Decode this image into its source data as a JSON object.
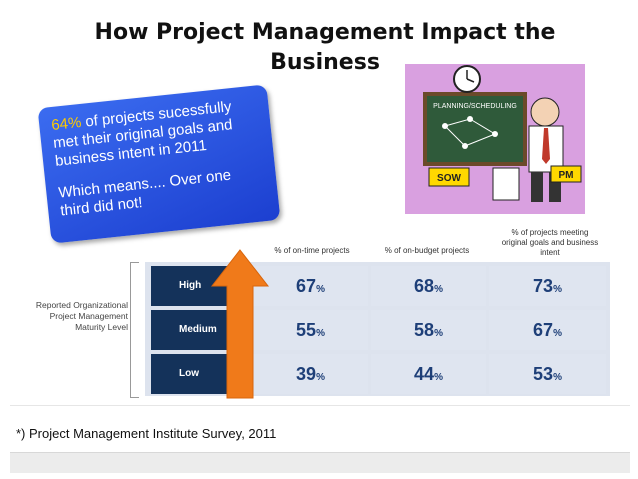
{
  "slide": {
    "title": "How Project Management Impact the Business",
    "callout": {
      "highlight": "64%",
      "line1_rest": " of projects sucessfully met their original goals and business intent in 2011",
      "line2": "Which means.... Over one third did not!"
    },
    "cartoon": {
      "board_label": "PLANNING/SCHEDULING",
      "sow_label": "SOW",
      "pm_label": "PM"
    },
    "table": {
      "row_axis_label": "Reported Organizational Project Management Maturity Level",
      "columns": [
        "% of on-time projects",
        "% of on-budget projects",
        "% of projects meeting original goals and business intent"
      ],
      "rows": [
        {
          "label": "High",
          "values": [
            "67",
            "68",
            "73"
          ]
        },
        {
          "label": "Medium",
          "values": [
            "55",
            "58",
            "67"
          ]
        },
        {
          "label": "Low",
          "values": [
            "39",
            "44",
            "53"
          ]
        }
      ],
      "unit": "%"
    },
    "footnote": "*) Project Management Institute Survey, 2011",
    "colors": {
      "callout_bg": "#2a52e0",
      "highlight": "#ffcc00",
      "row_label_bg": "#14325a",
      "value_text": "#1e3f78",
      "arrow": "#f07a1a"
    }
  }
}
